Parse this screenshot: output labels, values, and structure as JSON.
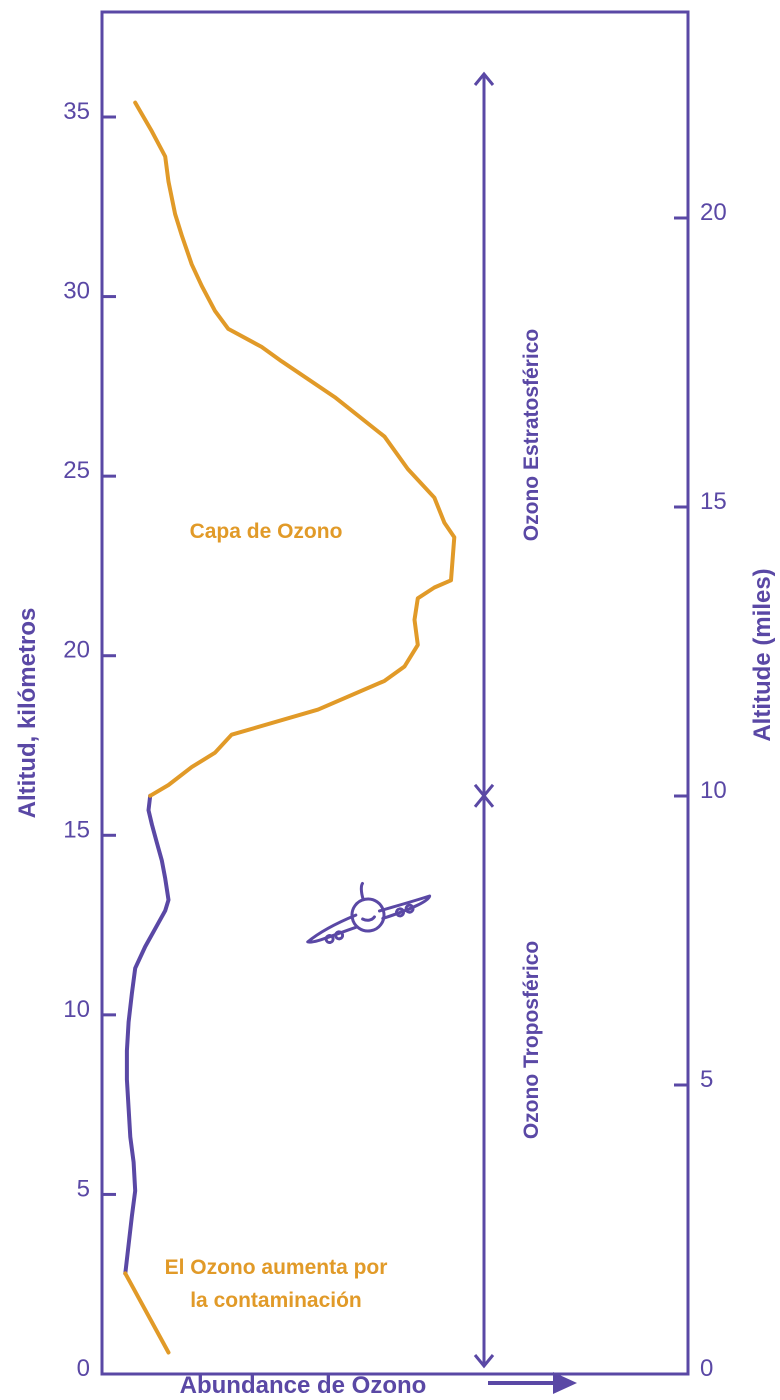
{
  "colors": {
    "purple": "#5a48a5",
    "orange": "#e19a28",
    "background": "#ffffff"
  },
  "chart_data": {
    "type": "line",
    "title": "",
    "xlabel": "Abundance de Ozono",
    "ylabel_left": "Altitud, kilómetros",
    "ylabel_right": "Altitude (miles)",
    "ylim_km": [
      0,
      36
    ],
    "left_ticks_km": [
      "0",
      "5",
      "10",
      "15",
      "20",
      "25",
      "30",
      "35"
    ],
    "right_ticks_miles": [
      "0",
      "5",
      "10",
      "15",
      "20"
    ],
    "x_axis_values": "relative abundance (no numeric scale shown)",
    "series": [
      {
        "color": "#5a48a5",
        "points": [
          [
            0.07,
            2.8
          ],
          [
            0.08,
            3.6
          ],
          [
            0.09,
            4.4
          ],
          [
            0.1,
            5.1
          ],
          [
            0.095,
            5.9
          ],
          [
            0.085,
            6.6
          ],
          [
            0.08,
            7.4
          ],
          [
            0.075,
            8.2
          ],
          [
            0.075,
            9.0
          ],
          [
            0.08,
            9.8
          ],
          [
            0.09,
            10.6
          ],
          [
            0.1,
            11.3
          ],
          [
            0.13,
            11.9
          ],
          [
            0.16,
            12.4
          ],
          [
            0.19,
            12.9
          ],
          [
            0.2,
            13.2
          ],
          [
            0.19,
            13.8
          ],
          [
            0.18,
            14.3
          ],
          [
            0.165,
            14.8
          ],
          [
            0.15,
            15.3
          ],
          [
            0.14,
            15.7
          ],
          [
            0.145,
            16.1
          ]
        ]
      },
      {
        "color": "#e19a28",
        "points": [
          [
            0.145,
            16.1
          ],
          [
            0.2,
            16.4
          ],
          [
            0.27,
            16.9
          ],
          [
            0.34,
            17.3
          ],
          [
            0.39,
            17.8
          ],
          [
            0.65,
            18.5
          ],
          [
            0.85,
            19.3
          ],
          [
            0.91,
            19.7
          ],
          [
            0.95,
            20.3
          ],
          [
            0.94,
            21.0
          ],
          [
            0.95,
            21.6
          ],
          [
            1.0,
            21.9
          ],
          [
            1.05,
            22.1
          ],
          [
            1.06,
            23.3
          ],
          [
            1.03,
            23.7
          ],
          [
            1.0,
            24.4
          ],
          [
            0.92,
            25.2
          ],
          [
            0.85,
            26.1
          ],
          [
            0.7,
            27.2
          ],
          [
            0.54,
            28.2
          ],
          [
            0.48,
            28.6
          ],
          [
            0.38,
            29.1
          ],
          [
            0.34,
            29.6
          ],
          [
            0.3,
            30.3
          ],
          [
            0.27,
            30.9
          ],
          [
            0.24,
            31.7
          ],
          [
            0.22,
            32.3
          ],
          [
            0.2,
            33.2
          ],
          [
            0.19,
            33.9
          ],
          [
            0.15,
            34.6
          ],
          [
            0.1,
            35.4
          ]
        ]
      }
    ],
    "annotations": {
      "ozone_layer": "Capa de Ozono",
      "pollution_line1": "El Ozono aumenta por",
      "pollution_line2": "la contaminación",
      "stratospheric": "Ozono Estratosférico",
      "tropospheric": "Ozono Troposférico"
    },
    "stratospheric_range_km": [
      16.1,
      36
    ],
    "tropospheric_range_km": [
      0,
      16.1
    ],
    "pollution_segment": {
      "color": "#e19a28",
      "points": [
        [
          0.07,
          2.8
        ],
        [
          0.2,
          0.6
        ]
      ]
    }
  }
}
